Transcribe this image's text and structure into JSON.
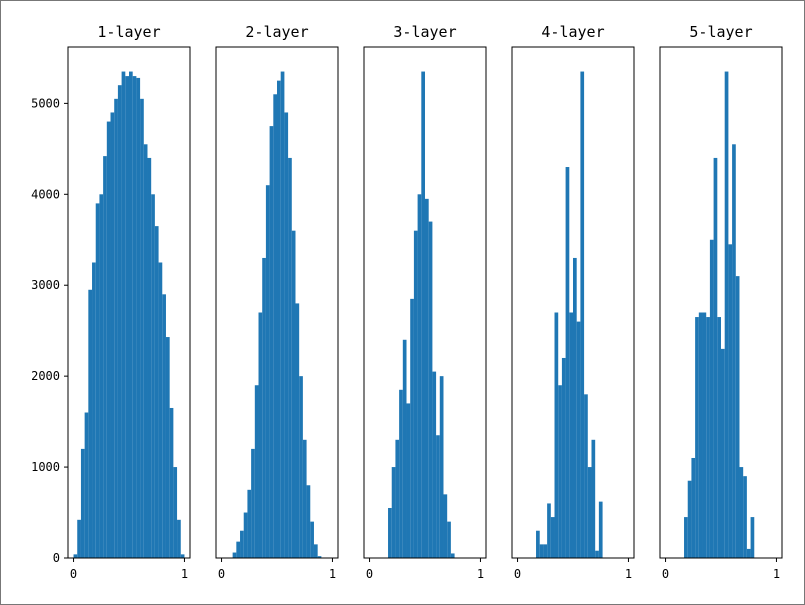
{
  "chart_data": [
    {
      "type": "histogram",
      "title": "1-layer",
      "color": "#1f77b4",
      "bins": [
        0,
        0.0333,
        0.0667,
        0.1,
        0.1333,
        0.1667,
        0.2,
        0.2333,
        0.2667,
        0.3,
        0.3333,
        0.3667,
        0.4,
        0.4333,
        0.4667,
        0.5,
        0.5333,
        0.5667,
        0.6,
        0.6333,
        0.6667,
        0.7,
        0.7333,
        0.7667,
        0.8,
        0.8333,
        0.8667,
        0.9,
        0.9333,
        0.9667,
        1
      ],
      "values": [
        40,
        420,
        1200,
        1600,
        2950,
        3250,
        3900,
        4000,
        4420,
        4800,
        4900,
        5050,
        5200,
        5350,
        5300,
        5350,
        5300,
        5280,
        5050,
        4550,
        4400,
        4000,
        3650,
        3250,
        2900,
        2430,
        1650,
        1000,
        420,
        40
      ],
      "xlim": [
        -0.05,
        1.05
      ],
      "xticks": [
        0,
        1
      ],
      "ylim": [
        0,
        5620
      ],
      "yticks": [
        0,
        1000,
        2000,
        3000,
        4000,
        5000
      ]
    },
    {
      "type": "histogram",
      "title": "2-layer",
      "color": "#1f77b4",
      "bins": [
        0,
        0.0333,
        0.0667,
        0.1,
        0.1333,
        0.1667,
        0.2,
        0.2333,
        0.2667,
        0.3,
        0.3333,
        0.3667,
        0.4,
        0.4333,
        0.4667,
        0.5,
        0.5333,
        0.5667,
        0.6,
        0.6333,
        0.6667,
        0.7,
        0.7333,
        0.7667,
        0.8,
        0.8333,
        0.8667,
        0.9,
        0.9333,
        0.9667,
        1
      ],
      "values": [
        0,
        0,
        5,
        60,
        180,
        300,
        500,
        750,
        1200,
        1900,
        2700,
        3300,
        4100,
        4750,
        5100,
        5250,
        5350,
        4900,
        4400,
        3600,
        2800,
        2000,
        1300,
        800,
        400,
        150,
        20,
        0,
        0,
        0
      ],
      "xlim": [
        -0.05,
        1.05
      ],
      "xticks": [
        0,
        1
      ],
      "ylim": [
        0,
        5620
      ]
    },
    {
      "type": "histogram",
      "title": "3-layer",
      "color": "#1f77b4",
      "bins": [
        0,
        0.0333,
        0.0667,
        0.1,
        0.1333,
        0.1667,
        0.2,
        0.2333,
        0.2667,
        0.3,
        0.3333,
        0.3667,
        0.4,
        0.4333,
        0.4667,
        0.5,
        0.5333,
        0.5667,
        0.6,
        0.6333,
        0.6667,
        0.7,
        0.7333,
        0.7667,
        0.8,
        0.8333,
        0.8667,
        0.9,
        0.9333,
        0.9667,
        1
      ],
      "values": [
        0,
        0,
        0,
        0,
        0,
        550,
        1000,
        1300,
        1850,
        2400,
        1700,
        2850,
        3600,
        4000,
        5350,
        3950,
        3700,
        2050,
        1350,
        2000,
        700,
        400,
        50,
        0,
        0,
        0,
        0,
        0,
        0,
        0
      ],
      "xlim": [
        -0.05,
        1.05
      ],
      "xticks": [
        0,
        1
      ],
      "ylim": [
        0,
        5620
      ]
    },
    {
      "type": "histogram",
      "title": "4-layer",
      "color": "#1f77b4",
      "bins": [
        0,
        0.0333,
        0.0667,
        0.1,
        0.1333,
        0.1667,
        0.2,
        0.2333,
        0.2667,
        0.3,
        0.3333,
        0.3667,
        0.4,
        0.4333,
        0.4667,
        0.5,
        0.5333,
        0.5667,
        0.6,
        0.6333,
        0.6667,
        0.7,
        0.7333,
        0.7667,
        0.8,
        0.8333,
        0.8667,
        0.9,
        0.9333,
        0.9667,
        1
      ],
      "values": [
        0,
        0,
        0,
        0,
        0,
        300,
        150,
        150,
        600,
        450,
        2700,
        1900,
        2200,
        4300,
        2700,
        3300,
        2600,
        5350,
        1800,
        1000,
        1300,
        80,
        620,
        0,
        0,
        0,
        0,
        0,
        0,
        0
      ],
      "xlim": [
        -0.05,
        1.05
      ],
      "xticks": [
        0,
        1
      ],
      "ylim": [
        0,
        5620
      ]
    },
    {
      "type": "histogram",
      "title": "5-layer",
      "color": "#1f77b4",
      "bins": [
        0,
        0.0333,
        0.0667,
        0.1,
        0.1333,
        0.1667,
        0.2,
        0.2333,
        0.2667,
        0.3,
        0.3333,
        0.3667,
        0.4,
        0.4333,
        0.4667,
        0.5,
        0.5333,
        0.5667,
        0.6,
        0.6333,
        0.6667,
        0.7,
        0.7333,
        0.7667,
        0.8,
        0.8333,
        0.8667,
        0.9,
        0.9333,
        0.9667,
        1
      ],
      "values": [
        0,
        0,
        0,
        0,
        0,
        450,
        850,
        1100,
        2650,
        2700,
        2700,
        2650,
        3500,
        4400,
        2650,
        2300,
        5350,
        3450,
        4550,
        3100,
        1000,
        900,
        100,
        450,
        0,
        0,
        0,
        0,
        0,
        0
      ],
      "xlim": [
        -0.05,
        1.05
      ],
      "xticks": [
        0,
        1
      ],
      "ylim": [
        0,
        5620
      ]
    }
  ]
}
